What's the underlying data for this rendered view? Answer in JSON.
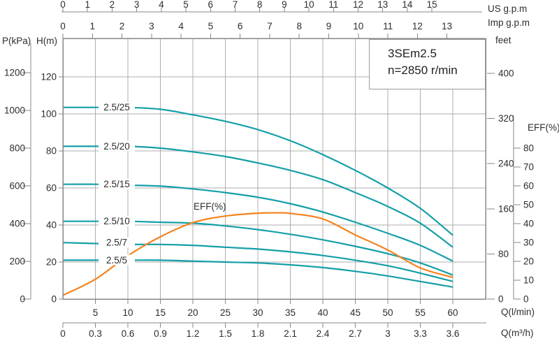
{
  "chart_data": {
    "type": "line",
    "title_line1": "3SEm2.5",
    "title_line2": "n=2850 r/min",
    "axes": {
      "us_gpm": {
        "label": "US g.p.m",
        "ticks": [
          0,
          1,
          2,
          3,
          4,
          5,
          6,
          7,
          8,
          9,
          10,
          11,
          12,
          13,
          14,
          15
        ]
      },
      "imp_gpm": {
        "label": "Imp g.p.m",
        "ticks": [
          0,
          1,
          2,
          3,
          4,
          5,
          6,
          7,
          8,
          9,
          10,
          11,
          12,
          13
        ]
      },
      "p_kpa": {
        "label": "P(kPa)",
        "ticks": [
          0,
          200,
          400,
          600,
          800,
          1000,
          1200
        ]
      },
      "h_m": {
        "label": "H(m)",
        "ticks": [
          0,
          20,
          40,
          60,
          80,
          100,
          120
        ]
      },
      "feet": {
        "label": "feet",
        "ticks": [
          0,
          80,
          160,
          240,
          320,
          400
        ]
      },
      "eff_right": {
        "label": "EFF(%)",
        "ticks": [
          0,
          10,
          20,
          30,
          40,
          50,
          60,
          70,
          80
        ]
      },
      "q_lmin": {
        "label": "Q(l/min)",
        "ticks": [
          5,
          10,
          15,
          20,
          25,
          30,
          35,
          40,
          45,
          50,
          55,
          60
        ],
        "range": [
          0,
          60
        ]
      },
      "q_m3h": {
        "label": "Q(m³/h)",
        "ticks": [
          "0",
          "0.3",
          "0.6",
          "0.9",
          "1.2",
          "1.5",
          "1.8",
          "2.1",
          "2.4",
          "2.7",
          "3",
          "3.3",
          "3.6"
        ]
      }
    },
    "grid": true,
    "series": [
      {
        "name": "2.5/25",
        "points": [
          [
            0,
            103.5
          ],
          [
            5,
            103.5
          ],
          [
            10,
            103.5
          ],
          [
            15,
            102.5
          ],
          [
            20,
            99.5
          ],
          [
            25,
            96
          ],
          [
            30,
            91.5
          ],
          [
            35,
            85.5
          ],
          [
            40,
            78
          ],
          [
            45,
            69.5
          ],
          [
            50,
            60
          ],
          [
            55,
            49
          ],
          [
            60,
            34.5
          ]
        ]
      },
      {
        "name": "2.5/20",
        "points": [
          [
            0,
            82.5
          ],
          [
            5,
            82.5
          ],
          [
            10,
            82.5
          ],
          [
            15,
            81.5
          ],
          [
            20,
            79.5
          ],
          [
            25,
            77
          ],
          [
            30,
            73.5
          ],
          [
            35,
            69.5
          ],
          [
            40,
            64.5
          ],
          [
            45,
            57.5
          ],
          [
            50,
            50
          ],
          [
            55,
            41
          ],
          [
            60,
            28
          ]
        ]
      },
      {
        "name": "2.5/15",
        "points": [
          [
            0,
            62
          ],
          [
            5,
            62
          ],
          [
            10,
            61.5
          ],
          [
            15,
            61
          ],
          [
            20,
            59.5
          ],
          [
            25,
            57.5
          ],
          [
            30,
            55
          ],
          [
            35,
            51.5
          ],
          [
            40,
            47
          ],
          [
            45,
            41.5
          ],
          [
            50,
            35.5
          ],
          [
            55,
            29
          ],
          [
            60,
            20.5
          ]
        ]
      },
      {
        "name": "2.5/10",
        "points": [
          [
            0,
            42
          ],
          [
            5,
            42
          ],
          [
            10,
            42
          ],
          [
            15,
            41.5
          ],
          [
            20,
            41
          ],
          [
            25,
            39.5
          ],
          [
            30,
            37.5
          ],
          [
            35,
            35
          ],
          [
            40,
            32
          ],
          [
            45,
            28.5
          ],
          [
            50,
            24.5
          ],
          [
            55,
            19.5
          ],
          [
            60,
            13
          ]
        ]
      },
      {
        "name": "2.5/7",
        "points": [
          [
            0,
            30.5
          ],
          [
            5,
            30
          ],
          [
            10,
            29.5
          ],
          [
            15,
            29.5
          ],
          [
            20,
            29
          ],
          [
            25,
            28
          ],
          [
            30,
            27
          ],
          [
            35,
            25.5
          ],
          [
            40,
            23.5
          ],
          [
            45,
            21
          ],
          [
            50,
            18
          ],
          [
            55,
            14
          ],
          [
            60,
            9.5
          ]
        ]
      },
      {
        "name": "2.5/5",
        "points": [
          [
            0,
            21
          ],
          [
            5,
            21
          ],
          [
            10,
            21
          ],
          [
            15,
            21
          ],
          [
            20,
            20.5
          ],
          [
            25,
            20
          ],
          [
            30,
            19.5
          ],
          [
            35,
            18.5
          ],
          [
            40,
            17
          ],
          [
            45,
            15
          ],
          [
            50,
            12.5
          ],
          [
            55,
            9.5
          ],
          [
            60,
            6.5
          ]
        ]
      }
    ],
    "eff_series": {
      "name": "EFF(%)",
      "points": [
        [
          0,
          2
        ],
        [
          5,
          10.5
        ],
        [
          10,
          23
        ],
        [
          15,
          33
        ],
        [
          20,
          40.5
        ],
        [
          25,
          44
        ],
        [
          30,
          45.5
        ],
        [
          33,
          45.7
        ],
        [
          35,
          45.4
        ],
        [
          40,
          42.5
        ],
        [
          45,
          34
        ],
        [
          50,
          26
        ],
        [
          55,
          16.5
        ],
        [
          60,
          11.5
        ]
      ]
    },
    "colors": {
      "head_curve": "#149fa8",
      "eff_curve": "#f5831f",
      "grid": "#adadad",
      "axis": "#878787",
      "text": "#2d2d2d"
    }
  }
}
